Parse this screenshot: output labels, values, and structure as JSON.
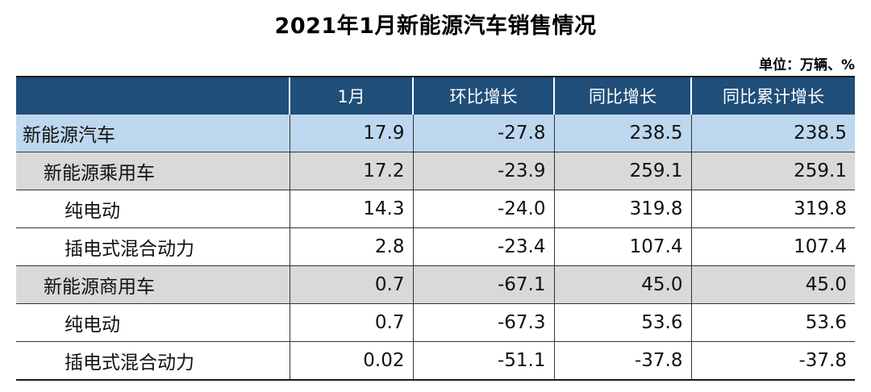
{
  "title": "2021年1月新能源汽车销售情况",
  "unit": "单位：万辆、%",
  "table": {
    "headers": [
      "",
      "1月",
      "环比增长",
      "同比增长",
      "同比累计增长"
    ],
    "rows": [
      {
        "name": "新能源汽车",
        "level": 0,
        "values": [
          "17.9",
          "-27.8",
          "238.5",
          "238.5"
        ]
      },
      {
        "name": "新能源乘用车",
        "level": 1,
        "values": [
          "17.2",
          "-23.9",
          "259.1",
          "259.1"
        ]
      },
      {
        "name": "纯电动",
        "level": 2,
        "values": [
          "14.3",
          "-24.0",
          "319.8",
          "319.8"
        ]
      },
      {
        "name": "插电式混合动力",
        "level": 2,
        "values": [
          "2.8",
          "-23.4",
          "107.4",
          "107.4"
        ]
      },
      {
        "name": "新能源商用车",
        "level": 1,
        "values": [
          "0.7",
          "-67.1",
          "45.0",
          "45.0"
        ]
      },
      {
        "name": "纯电动",
        "level": 2,
        "values": [
          "0.7",
          "-67.3",
          "53.6",
          "53.6"
        ]
      },
      {
        "name": "插电式混合动力",
        "level": 2,
        "values": [
          "0.02",
          "-51.1",
          "-37.8",
          "-37.8"
        ]
      }
    ]
  },
  "colors": {
    "header_bg": "#1f4e79",
    "total_row_bg": "#bdd7ee",
    "category_row_bg": "#d9d9d9"
  }
}
